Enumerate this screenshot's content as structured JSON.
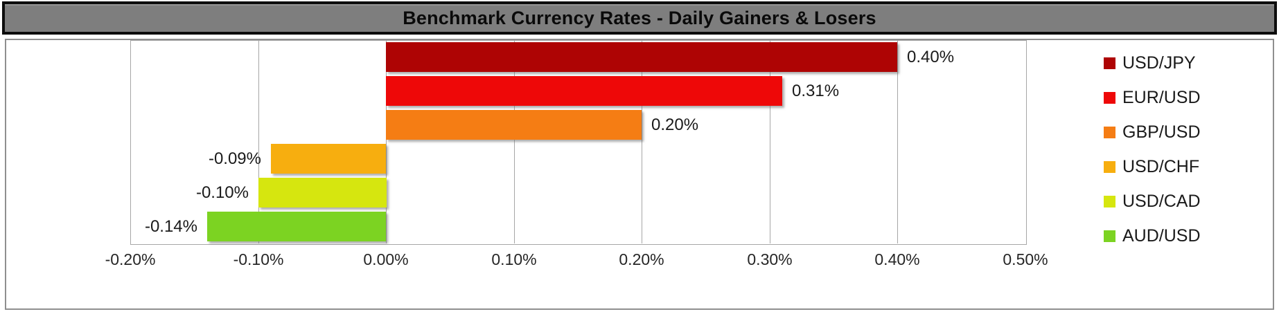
{
  "title": "Benchmark Currency Rates - Daily Gainers & Losers",
  "chart_data": {
    "type": "bar",
    "orientation": "horizontal",
    "title": "Benchmark Currency Rates - Daily Gainers & Losers",
    "categories": [
      "USD/JPY",
      "EUR/USD",
      "GBP/USD",
      "USD/CHF",
      "USD/CAD",
      "AUD/USD"
    ],
    "values": [
      0.4,
      0.31,
      0.2,
      -0.09,
      -0.1,
      -0.14
    ],
    "data_labels": [
      "0.40%",
      "0.31%",
      "0.20%",
      "-0.09%",
      "-0.10%",
      "-0.14%"
    ],
    "colors": [
      "#ae0404",
      "#ee0808",
      "#f57d14",
      "#f7ae0f",
      "#d6e60f",
      "#7cd322"
    ],
    "xlim": [
      -0.2,
      0.5
    ],
    "x_ticks": [
      {
        "value": -0.2,
        "label": "-0.20%"
      },
      {
        "value": -0.1,
        "label": "-0.10%"
      },
      {
        "value": 0.0,
        "label": "0.00%"
      },
      {
        "value": 0.1,
        "label": "0.10%"
      },
      {
        "value": 0.2,
        "label": "0.20%"
      },
      {
        "value": 0.3,
        "label": "0.30%"
      },
      {
        "value": 0.4,
        "label": "0.40%"
      },
      {
        "value": 0.5,
        "label": "0.50%"
      }
    ],
    "grid": true,
    "legend_position": "right",
    "xlabel": "",
    "ylabel": ""
  },
  "style_colors": {
    "banner_fill": "#7e7e7e",
    "banner_border": "#0d0d0d",
    "chart_border": "#8f8f8f",
    "gridline": "#a6a6a6",
    "text": "#1a1a1a"
  }
}
